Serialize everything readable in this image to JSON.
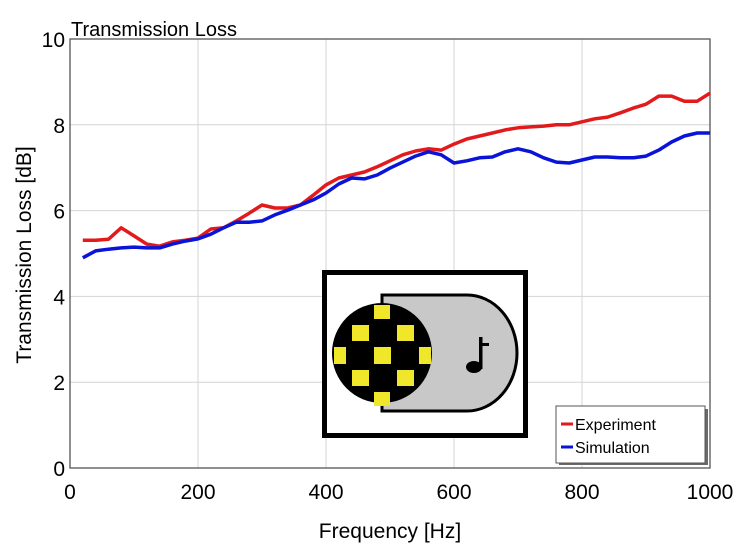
{
  "chart_data": {
    "type": "line",
    "title": "Transmission Loss",
    "xlabel": "Frequency [Hz]",
    "ylabel": "Transmission Loss [dB]",
    "xlim": [
      0,
      1000
    ],
    "ylim": [
      0,
      10
    ],
    "xticks": [
      0,
      200,
      400,
      600,
      800,
      1000
    ],
    "yticks": [
      0,
      2,
      4,
      6,
      8,
      10
    ],
    "xtick_labels": [
      "0",
      "200",
      "400",
      "600",
      "800",
      "1000"
    ],
    "ytick_labels": [
      "0",
      "2",
      "4",
      "6",
      "8",
      "10"
    ],
    "grid": true,
    "legend_position": "bottom-right",
    "x": [
      20,
      40,
      60,
      80,
      100,
      120,
      140,
      160,
      180,
      200,
      220,
      240,
      260,
      280,
      300,
      320,
      340,
      360,
      380,
      400,
      420,
      440,
      460,
      480,
      500,
      520,
      540,
      560,
      580,
      600,
      620,
      640,
      660,
      680,
      700,
      720,
      740,
      760,
      780,
      800,
      820,
      840,
      860,
      880,
      900,
      920,
      940,
      960,
      980,
      1000
    ],
    "series": [
      {
        "name": "Experiment",
        "color": "#e31a1c",
        "values": [
          5.31,
          5.31,
          5.33,
          5.6,
          5.41,
          5.22,
          5.17,
          5.27,
          5.31,
          5.36,
          5.57,
          5.6,
          5.76,
          5.94,
          6.13,
          6.06,
          6.06,
          6.13,
          6.36,
          6.6,
          6.76,
          6.83,
          6.9,
          7.02,
          7.16,
          7.3,
          7.39,
          7.44,
          7.41,
          7.55,
          7.67,
          7.74,
          7.81,
          7.88,
          7.93,
          7.95,
          7.97,
          8.0,
          8.0,
          8.07,
          8.14,
          8.18,
          8.28,
          8.39,
          8.48,
          8.67,
          8.67,
          8.55,
          8.55,
          8.74
        ]
      },
      {
        "name": "Simulation",
        "color": "#0a14d8",
        "values": [
          4.9,
          5.06,
          5.1,
          5.13,
          5.15,
          5.13,
          5.13,
          5.22,
          5.29,
          5.34,
          5.45,
          5.6,
          5.73,
          5.73,
          5.76,
          5.9,
          6.01,
          6.13,
          6.25,
          6.41,
          6.62,
          6.76,
          6.74,
          6.83,
          6.99,
          7.13,
          7.27,
          7.37,
          7.3,
          7.11,
          7.16,
          7.23,
          7.25,
          7.37,
          7.44,
          7.37,
          7.23,
          7.13,
          7.11,
          7.18,
          7.25,
          7.25,
          7.23,
          7.23,
          7.27,
          7.41,
          7.6,
          7.74,
          7.81,
          7.81
        ]
      }
    ]
  },
  "overlay_icon": "audio-video-toggle-icon"
}
